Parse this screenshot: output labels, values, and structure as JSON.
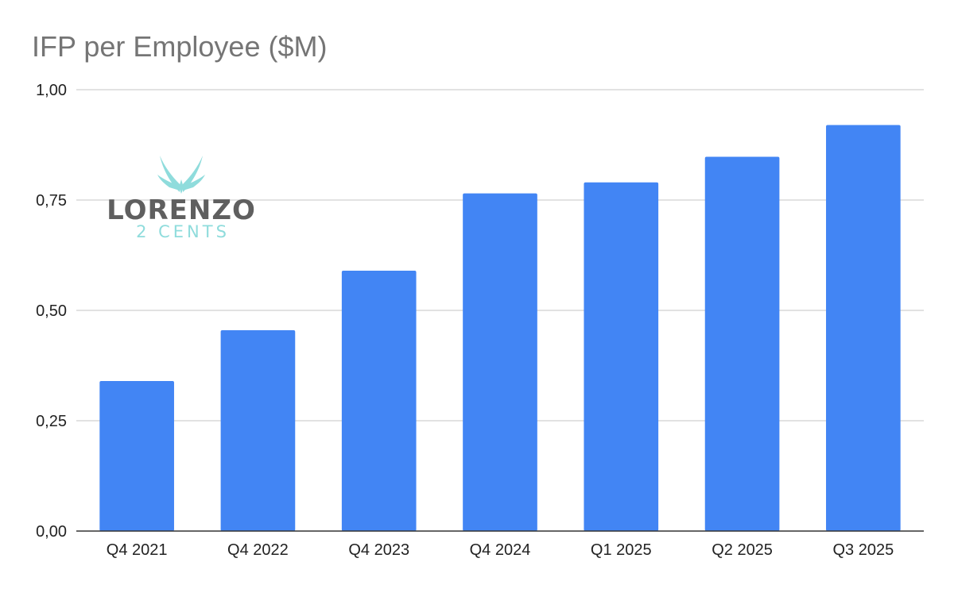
{
  "chart_data": {
    "type": "bar",
    "title": "IFP per Employee ($M)",
    "categories": [
      "Q4 2021",
      "Q4 2022",
      "Q4 2023",
      "Q4 2024",
      "Q1 2025",
      "Q2 2025",
      "Q3 2025"
    ],
    "values": [
      0.34,
      0.455,
      0.59,
      0.765,
      0.79,
      0.848,
      0.92
    ],
    "ylim": [
      0,
      1
    ],
    "yticks": [
      0,
      0.25,
      0.5,
      0.75,
      1
    ],
    "ytick_labels": [
      "0,00",
      "0,25",
      "0,50",
      "0,75",
      "1,00"
    ],
    "grid": true,
    "legend": "none",
    "colors": {
      "bar": "#4285f4",
      "grid": "#d0d0d0",
      "axis": "#333333",
      "title": "#757575"
    }
  },
  "watermark": {
    "brand": "LORENZO",
    "tagline": "2 CENTS",
    "colors": {
      "brand": "#5f5f5f",
      "accent": "#8fdcdc"
    }
  }
}
